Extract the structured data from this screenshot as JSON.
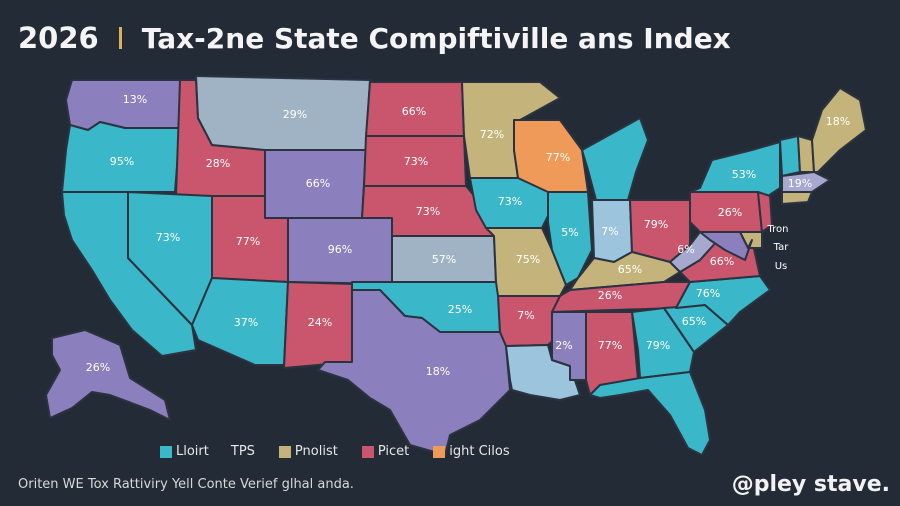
{
  "header": {
    "year": "2026",
    "title": "Tax-2ne State Compiftiville ans  Index"
  },
  "colors": {
    "background": "#232b36",
    "teal": "#3ab7c8",
    "purple": "#8b80bd",
    "red": "#c9566d",
    "tan": "#c4b37a",
    "orange": "#f09a5a",
    "grey": "#9fb3c4",
    "light_blue": "#9cc4dc",
    "light_purple": "#a6a8d0",
    "divider_accent": "#d9b25c"
  },
  "states": [
    {
      "id": "WA",
      "label": "13%",
      "color": "purple"
    },
    {
      "id": "OR",
      "label": "95%",
      "color": "teal"
    },
    {
      "id": "CA",
      "label": "",
      "color": "teal"
    },
    {
      "id": "ID",
      "label": "28%",
      "color": "red"
    },
    {
      "id": "NV",
      "label": "73%",
      "color": "teal"
    },
    {
      "id": "MT",
      "label": "29%",
      "color": "grey"
    },
    {
      "id": "WY",
      "label": "66%",
      "color": "purple"
    },
    {
      "id": "UT",
      "label": "77%",
      "color": "red"
    },
    {
      "id": "AZ",
      "label": "37%",
      "color": "teal"
    },
    {
      "id": "CO",
      "label": "96%",
      "color": "purple"
    },
    {
      "id": "NM",
      "label": "24%",
      "color": "red"
    },
    {
      "id": "ND",
      "label": "66%",
      "color": "red"
    },
    {
      "id": "SD",
      "label": "73%",
      "color": "red"
    },
    {
      "id": "NE",
      "label": "73%",
      "color": "red"
    },
    {
      "id": "KS",
      "label": "57%",
      "color": "grey"
    },
    {
      "id": "OK",
      "label": "25%",
      "color": "teal"
    },
    {
      "id": "TX",
      "label": "18%",
      "color": "purple"
    },
    {
      "id": "MN",
      "label": "72%",
      "color": "tan"
    },
    {
      "id": "IA",
      "label": "73%",
      "color": "teal"
    },
    {
      "id": "MO",
      "label": "75%",
      "color": "tan"
    },
    {
      "id": "AR",
      "label": "7%",
      "color": "red"
    },
    {
      "id": "LA",
      "label": "",
      "color": "light_blue"
    },
    {
      "id": "WI",
      "label": "77%",
      "color": "orange"
    },
    {
      "id": "IL",
      "label": "5%",
      "color": "teal"
    },
    {
      "id": "MI",
      "label": "",
      "color": "teal"
    },
    {
      "id": "IN",
      "label": "7%",
      "color": "light_blue"
    },
    {
      "id": "OH",
      "label": "79%",
      "color": "red"
    },
    {
      "id": "KY",
      "label": "65%",
      "color": "tan"
    },
    {
      "id": "TN",
      "label": "26%",
      "color": "red"
    },
    {
      "id": "MS",
      "label": "2%",
      "color": "purple"
    },
    {
      "id": "AL",
      "label": "77%",
      "color": "red"
    },
    {
      "id": "GA",
      "label": "79%",
      "color": "teal"
    },
    {
      "id": "FL",
      "label": "",
      "color": "teal"
    },
    {
      "id": "SC",
      "label": "65%",
      "color": "teal"
    },
    {
      "id": "NC",
      "label": "76%",
      "color": "teal"
    },
    {
      "id": "VA",
      "label": "66%",
      "color": "red"
    },
    {
      "id": "WV",
      "label": "6%",
      "color": "light_purple"
    },
    {
      "id": "PA",
      "label": "26%",
      "color": "red"
    },
    {
      "id": "NY",
      "label": "53%",
      "color": "teal"
    },
    {
      "id": "VT",
      "label": "",
      "color": "teal"
    },
    {
      "id": "NH",
      "label": "",
      "color": "tan"
    },
    {
      "id": "ME",
      "label": "18%",
      "color": "tan"
    },
    {
      "id": "MA",
      "label": "19%",
      "color": "light_purple"
    },
    {
      "id": "CT",
      "label": "",
      "color": "tan"
    },
    {
      "id": "NJ",
      "label": "",
      "color": "red"
    },
    {
      "id": "DE",
      "label": "",
      "color": "tan"
    },
    {
      "id": "MD",
      "label": "",
      "color": "purple"
    },
    {
      "id": "AK",
      "label": "26%",
      "color": "purple"
    }
  ],
  "annotations": [
    "Tron",
    "Tar",
    "Us"
  ],
  "legend": [
    {
      "color": "teal",
      "label": "Lloirt",
      "extra": "TPS"
    },
    {
      "color": "tan",
      "label": "Pnolist",
      "extra": ""
    },
    {
      "color": "red",
      "label": "Picet",
      "extra": ""
    },
    {
      "color": "orange",
      "label": "ight Cilos",
      "extra": ""
    }
  ],
  "footnote": "Oriten WE Tox Rattiviry Yell Conte Verief glhal anda.",
  "brand": "@pley stave."
}
